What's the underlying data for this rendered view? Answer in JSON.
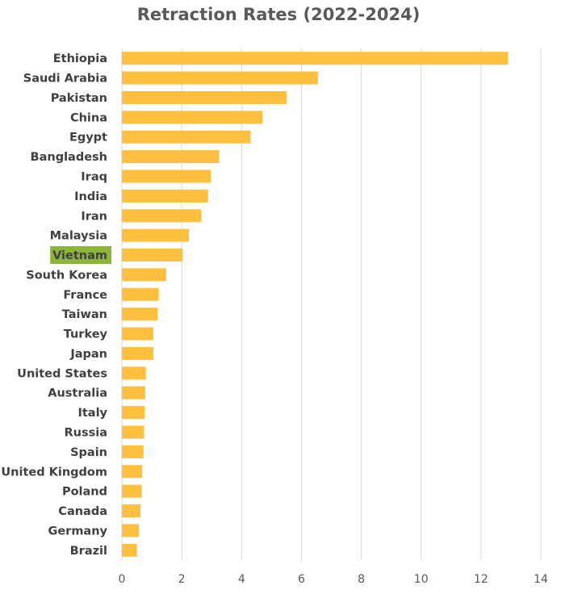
{
  "chart_data": {
    "type": "bar",
    "orientation": "horizontal",
    "title": "Retraction Rates (2022-2024)",
    "xlabel": "",
    "ylabel": "",
    "xlim": [
      0,
      14
    ],
    "xticks": [
      0,
      2,
      4,
      6,
      8,
      10,
      12,
      14
    ],
    "grid": "vertical gridlines",
    "bar_color": "#FFBF3F",
    "highlight_color": "#8DB43A",
    "highlighted_category": "Vietnam",
    "categories": [
      "Ethiopia",
      "Saudi Arabia",
      "Pakistan",
      "China",
      "Egypt",
      "Bangladesh",
      "Iraq",
      "India",
      "Iran",
      "Malaysia",
      "Vietnam",
      "South Korea",
      "France",
      "Taiwan",
      "Turkey",
      "Japan",
      "United States",
      "Australia",
      "Italy",
      "Russia",
      "Spain",
      "United Kingdom",
      "Poland",
      "Canada",
      "Germany",
      "Brazil"
    ],
    "values": [
      12.9,
      6.55,
      5.5,
      4.7,
      4.3,
      3.25,
      2.97,
      2.88,
      2.65,
      2.24,
      2.03,
      1.48,
      1.23,
      1.2,
      1.05,
      1.05,
      0.8,
      0.78,
      0.76,
      0.74,
      0.72,
      0.68,
      0.66,
      0.62,
      0.57,
      0.5
    ]
  }
}
